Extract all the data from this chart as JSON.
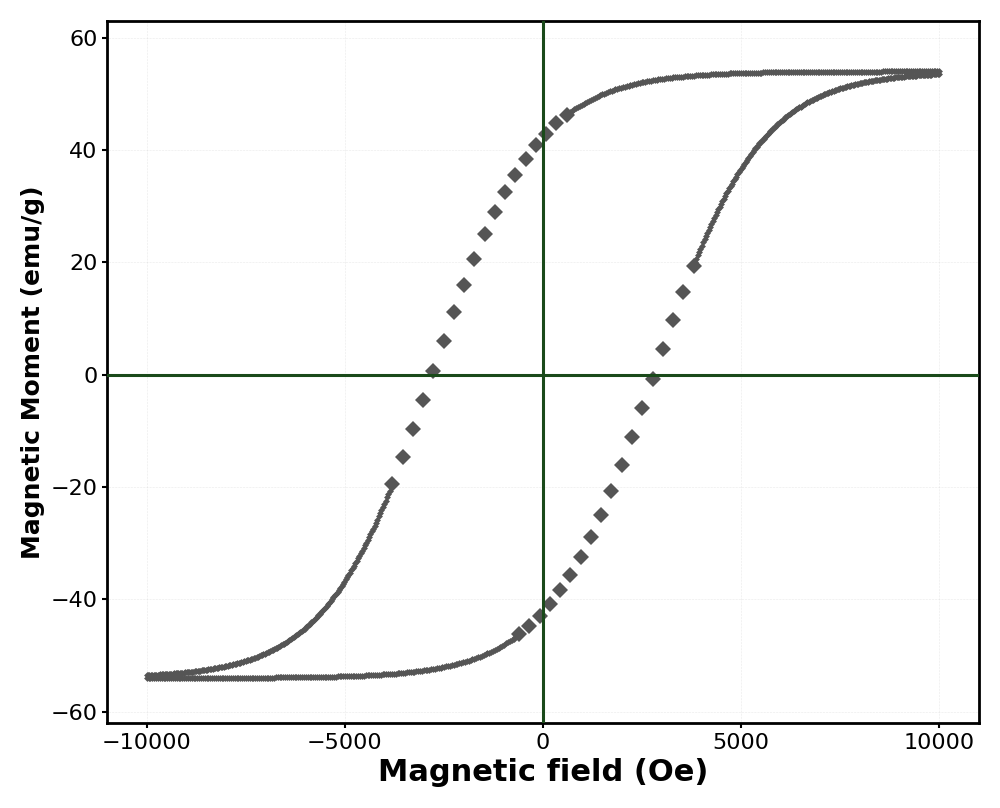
{
  "xlabel": "Magnetic field (Oe)",
  "ylabel": "Magnetic Moment (emu/g)",
  "xlim": [
    -11000,
    11000
  ],
  "ylim": [
    -62,
    63
  ],
  "xticks": [
    -10000,
    -5000,
    0,
    5000,
    10000
  ],
  "yticks": [
    -60,
    -40,
    -20,
    0,
    20,
    40,
    60
  ],
  "marker_color": "#555555",
  "dense_marker_size": 3.5,
  "sparse_marker_size": 8,
  "crosshair_color": "#1a4a1a",
  "crosshair_linewidth": 2.2,
  "Ms": 54.0,
  "Hc": 2800,
  "saturation_field": 8500,
  "background_color": "#ffffff",
  "xlabel_fontsize": 22,
  "ylabel_fontsize": 18,
  "tick_fontsize": 16,
  "spine_linewidth": 2.0
}
